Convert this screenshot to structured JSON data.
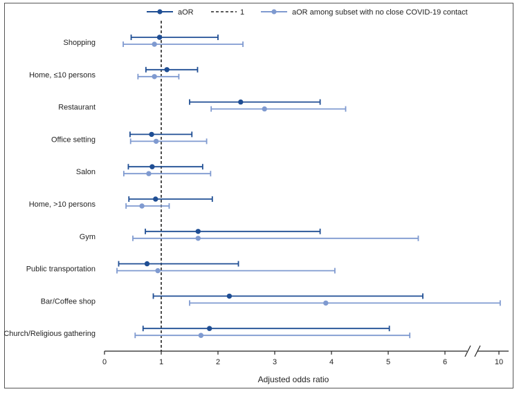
{
  "chart_data": {
    "type": "forest",
    "title": "",
    "xlabel": "Adjusted odds ratio",
    "ylabel": "",
    "legend": {
      "placement": "top",
      "entries": [
        {
          "label": "aOR",
          "color": "#1f4e94",
          "marker": "line-dot"
        },
        {
          "label": "1",
          "color": "#222222",
          "marker": "dashed"
        },
        {
          "label": "aOR among subset with no close COVID-19 contact",
          "color": "#7f9ad0",
          "marker": "line-dot"
        }
      ]
    },
    "reference_line": 1,
    "x_ticks": [
      "0",
      "1",
      "2",
      "3",
      "4",
      "5",
      "6",
      "10"
    ],
    "x_axis_break": "between 6 and 10",
    "categories": [
      "Shopping",
      "Home, ≤10 persons",
      "Restaurant",
      "Office setting",
      "Salon",
      "Home, >10 persons",
      "Gym",
      "Public transportation",
      "Bar/Coffee shop",
      "Church/Religious gathering"
    ],
    "series": [
      {
        "name": "aOR",
        "color": "#1f4e94",
        "points": [
          {
            "est": 0.97,
            "lo": 0.47,
            "hi": 2.0
          },
          {
            "est": 1.1,
            "lo": 0.73,
            "hi": 1.64
          },
          {
            "est": 2.4,
            "lo": 1.5,
            "hi": 3.8
          },
          {
            "est": 0.83,
            "lo": 0.45,
            "hi": 1.54
          },
          {
            "est": 0.84,
            "lo": 0.42,
            "hi": 1.73
          },
          {
            "est": 0.9,
            "lo": 0.43,
            "hi": 1.9
          },
          {
            "est": 1.65,
            "lo": 0.72,
            "hi": 3.8
          },
          {
            "est": 0.75,
            "lo": 0.25,
            "hi": 2.36
          },
          {
            "est": 2.2,
            "lo": 0.86,
            "hi": 5.61
          },
          {
            "est": 1.85,
            "lo": 0.68,
            "hi": 5.02
          }
        ]
      },
      {
        "name": "aOR among subset with no close COVID-19 contact",
        "color": "#7f9ad0",
        "points": [
          {
            "est": 0.88,
            "lo": 0.33,
            "hi": 2.44
          },
          {
            "est": 0.88,
            "lo": 0.59,
            "hi": 1.31
          },
          {
            "est": 2.82,
            "lo": 1.88,
            "hi": 4.25
          },
          {
            "est": 0.91,
            "lo": 0.46,
            "hi": 1.8
          },
          {
            "est": 0.78,
            "lo": 0.34,
            "hi": 1.87
          },
          {
            "est": 0.66,
            "lo": 0.38,
            "hi": 1.14
          },
          {
            "est": 1.65,
            "lo": 0.5,
            "hi": 5.53
          },
          {
            "est": 0.94,
            "lo": 0.22,
            "hi": 4.06
          },
          {
            "est": 3.9,
            "lo": 1.5,
            "hi": 10.1
          },
          {
            "est": 1.7,
            "lo": 0.54,
            "hi": 5.38
          }
        ]
      }
    ]
  }
}
